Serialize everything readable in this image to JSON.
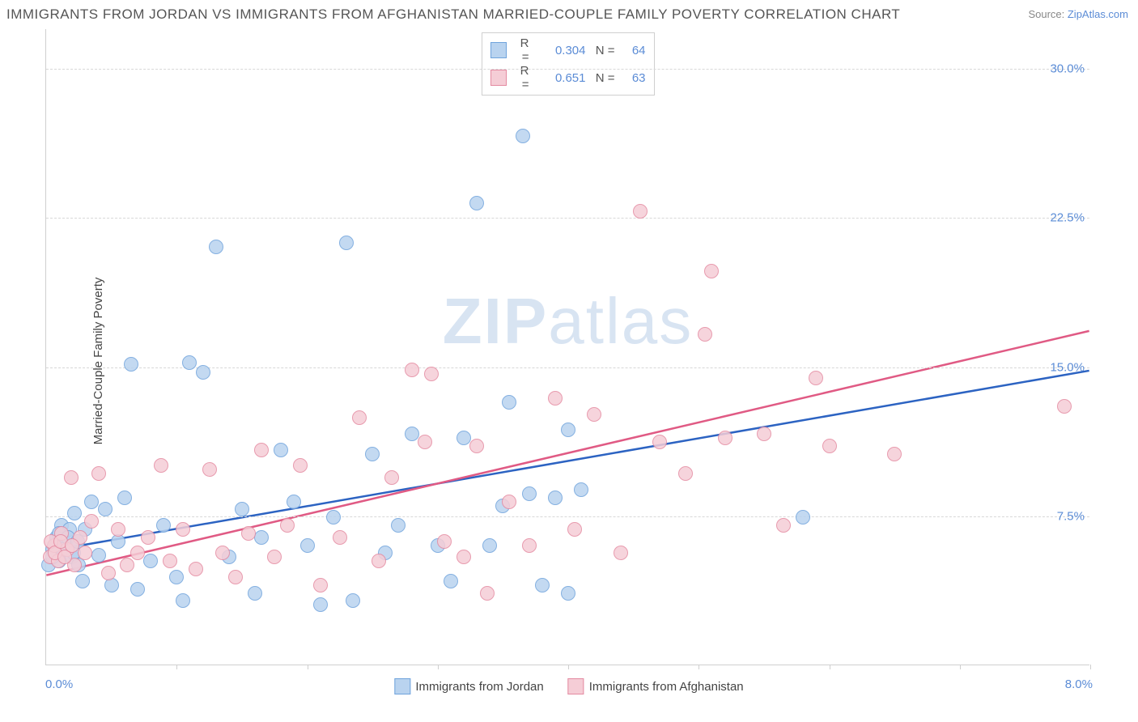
{
  "title": "IMMIGRANTS FROM JORDAN VS IMMIGRANTS FROM AFGHANISTAN MARRIED-COUPLE FAMILY POVERTY CORRELATION CHART",
  "source_prefix": "Source: ",
  "source_link": "ZipAtlas.com",
  "ylabel": "Married-Couple Family Poverty",
  "watermark_bold": "ZIP",
  "watermark_rest": "atlas",
  "xaxis": {
    "min": 0,
    "max": 8,
    "label_min": "0.0%",
    "label_max": "8.0%",
    "tick_step": 1,
    "minor_count": 8
  },
  "yaxis": {
    "min": 0,
    "max": 32,
    "ticks": [
      7.5,
      15.0,
      22.5,
      30.0
    ],
    "tick_labels": [
      "7.5%",
      "15.0%",
      "22.5%",
      "30.0%"
    ]
  },
  "series": [
    {
      "name": "Immigrants from Jordan",
      "color_fill": "#b9d3ef",
      "color_stroke": "#6fa3dc",
      "legend_r_label": "R =",
      "legend_r_value": "0.304",
      "legend_n_label": "N =",
      "legend_n_value": "64",
      "marker_radius": 9,
      "trend": {
        "y_at_xmin": 5.7,
        "y_at_xmax": 14.8,
        "color": "#2c63c2",
        "width": 2.5
      },
      "points": [
        [
          0.02,
          5.0
        ],
        [
          0.05,
          5.8
        ],
        [
          0.08,
          6.4
        ],
        [
          0.1,
          5.2
        ],
        [
          0.12,
          7.0
        ],
        [
          0.15,
          6.1
        ],
        [
          0.18,
          6.8
        ],
        [
          0.2,
          5.4
        ],
        [
          0.22,
          7.6
        ],
        [
          0.25,
          5.0
        ],
        [
          0.28,
          4.2
        ],
        [
          0.3,
          6.8
        ],
        [
          0.35,
          8.2
        ],
        [
          0.4,
          5.5
        ],
        [
          0.45,
          7.8
        ],
        [
          0.5,
          4.0
        ],
        [
          0.55,
          6.2
        ],
        [
          0.6,
          8.4
        ],
        [
          0.65,
          15.1
        ],
        [
          0.7,
          3.8
        ],
        [
          0.8,
          5.2
        ],
        [
          0.9,
          7.0
        ],
        [
          1.0,
          4.4
        ],
        [
          1.05,
          3.2
        ],
        [
          1.1,
          15.2
        ],
        [
          1.2,
          14.7
        ],
        [
          1.3,
          21.0
        ],
        [
          1.4,
          5.4
        ],
        [
          1.5,
          7.8
        ],
        [
          1.6,
          3.6
        ],
        [
          1.65,
          6.4
        ],
        [
          1.8,
          10.8
        ],
        [
          1.9,
          8.2
        ],
        [
          2.0,
          6.0
        ],
        [
          2.1,
          3.0
        ],
        [
          2.2,
          7.4
        ],
        [
          2.3,
          21.2
        ],
        [
          2.35,
          3.2
        ],
        [
          2.5,
          10.6
        ],
        [
          2.6,
          5.6
        ],
        [
          2.7,
          7.0
        ],
        [
          2.8,
          11.6
        ],
        [
          3.0,
          6.0
        ],
        [
          3.1,
          4.2
        ],
        [
          3.2,
          11.4
        ],
        [
          3.3,
          23.2
        ],
        [
          3.4,
          6.0
        ],
        [
          3.5,
          8.0
        ],
        [
          3.55,
          13.2
        ],
        [
          3.65,
          26.6
        ],
        [
          3.7,
          8.6
        ],
        [
          3.8,
          4.0
        ],
        [
          3.9,
          8.4
        ],
        [
          4.0,
          3.6
        ],
        [
          4.0,
          11.8
        ],
        [
          4.1,
          8.8
        ],
        [
          5.8,
          7.4
        ],
        [
          0.05,
          5.4
        ],
        [
          0.07,
          6.0
        ],
        [
          0.1,
          6.6
        ],
        [
          0.13,
          5.8
        ],
        [
          0.17,
          6.4
        ],
        [
          0.21,
          5.6
        ],
        [
          0.24,
          6.2
        ]
      ]
    },
    {
      "name": "Immigrants from Afghanistan",
      "color_fill": "#f5cdd6",
      "color_stroke": "#e48aa1",
      "legend_r_label": "R =",
      "legend_r_value": "0.651",
      "legend_n_label": "N =",
      "legend_n_value": "63",
      "marker_radius": 9,
      "trend": {
        "y_at_xmin": 4.5,
        "y_at_xmax": 16.8,
        "color": "#e05a84",
        "width": 2.5
      },
      "points": [
        [
          0.03,
          5.4
        ],
        [
          0.06,
          6.0
        ],
        [
          0.09,
          5.2
        ],
        [
          0.12,
          6.6
        ],
        [
          0.16,
          5.8
        ],
        [
          0.19,
          9.4
        ],
        [
          0.22,
          5.0
        ],
        [
          0.26,
          6.4
        ],
        [
          0.3,
          5.6
        ],
        [
          0.35,
          7.2
        ],
        [
          0.4,
          9.6
        ],
        [
          0.48,
          4.6
        ],
        [
          0.55,
          6.8
        ],
        [
          0.62,
          5.0
        ],
        [
          0.7,
          5.6
        ],
        [
          0.78,
          6.4
        ],
        [
          0.88,
          10.0
        ],
        [
          0.95,
          5.2
        ],
        [
          1.05,
          6.8
        ],
        [
          1.15,
          4.8
        ],
        [
          1.25,
          9.8
        ],
        [
          1.35,
          5.6
        ],
        [
          1.45,
          4.4
        ],
        [
          1.55,
          6.6
        ],
        [
          1.65,
          10.8
        ],
        [
          1.75,
          5.4
        ],
        [
          1.85,
          7.0
        ],
        [
          1.95,
          10.0
        ],
        [
          2.1,
          4.0
        ],
        [
          2.25,
          6.4
        ],
        [
          2.4,
          12.4
        ],
        [
          2.55,
          5.2
        ],
        [
          2.65,
          9.4
        ],
        [
          2.8,
          14.8
        ],
        [
          2.9,
          11.2
        ],
        [
          2.95,
          14.6
        ],
        [
          3.05,
          6.2
        ],
        [
          3.2,
          5.4
        ],
        [
          3.3,
          11.0
        ],
        [
          3.38,
          3.6
        ],
        [
          3.55,
          8.2
        ],
        [
          3.7,
          6.0
        ],
        [
          3.9,
          13.4
        ],
        [
          4.05,
          6.8
        ],
        [
          4.2,
          12.6
        ],
        [
          4.4,
          5.6
        ],
        [
          4.55,
          22.8
        ],
        [
          4.7,
          11.2
        ],
        [
          4.9,
          9.6
        ],
        [
          5.05,
          16.6
        ],
        [
          5.1,
          19.8
        ],
        [
          5.2,
          11.4
        ],
        [
          5.5,
          11.6
        ],
        [
          5.65,
          7.0
        ],
        [
          5.9,
          14.4
        ],
        [
          6.0,
          11.0
        ],
        [
          6.5,
          10.6
        ],
        [
          7.8,
          13.0
        ],
        [
          0.04,
          6.2
        ],
        [
          0.07,
          5.6
        ],
        [
          0.11,
          6.2
        ],
        [
          0.14,
          5.4
        ],
        [
          0.2,
          6.0
        ]
      ]
    }
  ],
  "colors": {
    "title": "#555555",
    "axis_label": "#5b8cd6",
    "grid": "#d8d8d8",
    "background": "#ffffff"
  }
}
